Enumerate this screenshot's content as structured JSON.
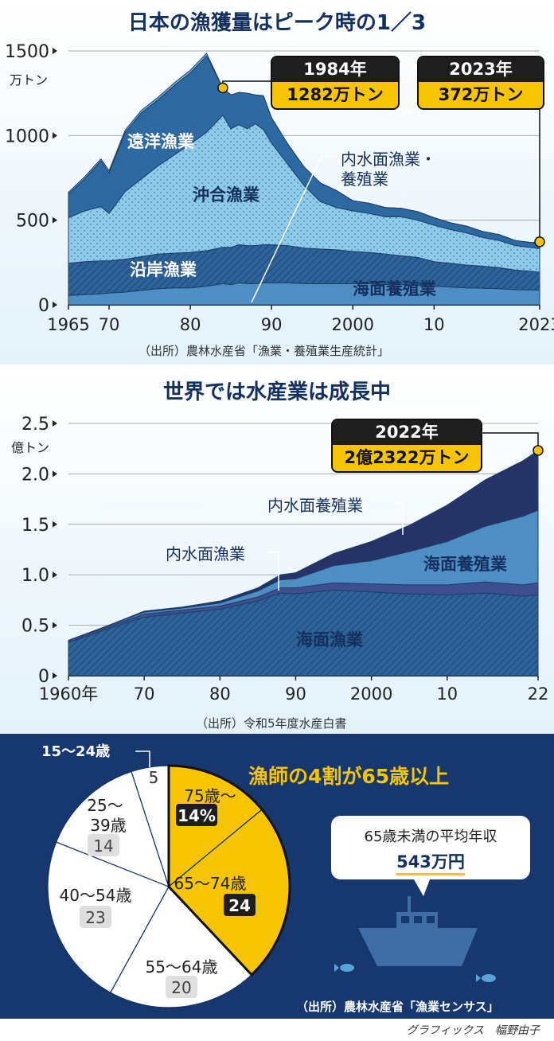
{
  "chart_data": [
    {
      "type": "area",
      "title": "日本の漁獲量はピーク時の1／3",
      "ylabel": "万トン",
      "ylim": [
        0,
        1500
      ],
      "yticks": [
        "0",
        "500",
        "1000",
        "1500"
      ],
      "xticks": [
        "1965",
        "70",
        "80",
        "90",
        "2000",
        "10",
        "2023"
      ],
      "x": [
        1965,
        1967,
        1969,
        1970,
        1972,
        1974,
        1976,
        1978,
        1980,
        1982,
        1984,
        1985,
        1986,
        1987,
        1988,
        1989,
        1990,
        1992,
        1994,
        1996,
        1998,
        2000,
        2002,
        2004,
        2006,
        2008,
        2010,
        2012,
        2014,
        2016,
        2018,
        2020,
        2022,
        2023
      ],
      "series": [
        {
          "name": "海面養殖業",
          "values": [
            55,
            60,
            65,
            70,
            75,
            85,
            95,
            100,
            100,
            110,
            125,
            120,
            130,
            125,
            125,
            130,
            130,
            130,
            125,
            125,
            125,
            125,
            125,
            120,
            120,
            115,
            110,
            105,
            100,
            98,
            95,
            90,
            88,
            87
          ]
        },
        {
          "name": "沿岸漁業",
          "values": [
            190,
            195,
            195,
            190,
            195,
            200,
            205,
            205,
            210,
            210,
            215,
            220,
            225,
            225,
            225,
            225,
            225,
            220,
            210,
            205,
            200,
            190,
            185,
            180,
            170,
            165,
            145,
            140,
            135,
            130,
            125,
            115,
            110,
            105
          ]
        },
        {
          "name": "沖合漁業",
          "values": [
            270,
            300,
            320,
            280,
            400,
            460,
            520,
            580,
            640,
            700,
            780,
            700,
            710,
            690,
            720,
            680,
            600,
            480,
            370,
            280,
            250,
            240,
            230,
            220,
            230,
            220,
            215,
            200,
            190,
            170,
            160,
            145,
            140,
            140
          ]
        },
        {
          "name": "遠洋漁業",
          "values": [
            140,
            190,
            270,
            240,
            350,
            390,
            390,
            410,
            420,
            450,
            162,
            200,
            190,
            210,
            170,
            200,
            150,
            120,
            110,
            110,
            100,
            60,
            60,
            55,
            50,
            50,
            45,
            40,
            40,
            35,
            35,
            30,
            30,
            30
          ]
        },
        {
          "name": "内水面漁業・養殖業",
          "values": [
            10,
            12,
            12,
            13,
            14,
            15,
            15,
            15,
            16,
            16,
            0,
            0,
            0,
            0,
            0,
            0,
            0,
            0,
            0,
            0,
            0,
            0,
            0,
            0,
            0,
            0,
            0,
            0,
            0,
            0,
            0,
            0,
            0,
            10
          ]
        }
      ],
      "annotations": [
        {
          "year": "1984年",
          "value": "1282万トン"
        },
        {
          "year": "2023年",
          "value": "372万トン"
        }
      ],
      "source": "（出所）農林水産省「漁業・養殖業生産統計」"
    },
    {
      "type": "area",
      "title": "世界では水産業は成長中",
      "ylabel": "億トン",
      "ylim": [
        0,
        2.5
      ],
      "yticks": [
        "0",
        "0.5",
        "1.0",
        "1.5",
        "2.0",
        "2.5"
      ],
      "xticks": [
        "1960年",
        "70",
        "80",
        "90",
        "2000",
        "10",
        "22"
      ],
      "x": [
        1960,
        1965,
        1970,
        1975,
        1980,
        1985,
        1988,
        1990,
        1995,
        2000,
        2005,
        2010,
        2015,
        2020,
        2022
      ],
      "series": [
        {
          "name": "海面漁業",
          "values": [
            0.33,
            0.46,
            0.58,
            0.62,
            0.66,
            0.74,
            0.82,
            0.81,
            0.85,
            0.83,
            0.81,
            0.8,
            0.82,
            0.79,
            0.8
          ]
        },
        {
          "name": "内水面漁業",
          "values": [
            0.02,
            0.02,
            0.03,
            0.03,
            0.03,
            0.04,
            0.05,
            0.06,
            0.07,
            0.08,
            0.09,
            0.1,
            0.11,
            0.11,
            0.12
          ]
        },
        {
          "name": "海面養殖業",
          "values": [
            0.0,
            0.01,
            0.02,
            0.02,
            0.03,
            0.06,
            0.08,
            0.09,
            0.17,
            0.23,
            0.33,
            0.43,
            0.55,
            0.68,
            0.72
          ]
        },
        {
          "name": "内水面養殖業",
          "values": [
            0.0,
            0.0,
            0.01,
            0.01,
            0.02,
            0.03,
            0.05,
            0.06,
            0.12,
            0.19,
            0.26,
            0.36,
            0.46,
            0.55,
            0.59
          ]
        }
      ],
      "annotations": [
        {
          "year": "2022年",
          "value": "2億2322万トン"
        }
      ],
      "source": "（出所）令和5年度水産白書"
    },
    {
      "type": "pie",
      "title": "漁師の4割が65歳以上",
      "categories": [
        "15～24歳",
        "25～39歳",
        "40～54歳",
        "55～64歳",
        "65～74歳",
        "75歳～"
      ],
      "values": [
        5,
        14,
        23,
        20,
        24,
        14
      ],
      "value_labels": [
        "5",
        "14",
        "23",
        "20",
        "24",
        "14%"
      ],
      "highlight": [
        "65～74歳",
        "75歳～"
      ],
      "highlight_color": "#f6c400",
      "source": "（出所）農林水産省「漁業センサス」"
    }
  ],
  "income_note": {
    "label": "65歳未満の平均年収",
    "value": "543万円"
  },
  "credit": "グラフィックス　幅野由子",
  "colors": {
    "navy": "#14305e",
    "light_blue": "#8fc9e8",
    "mid_blue": "#3a78ae",
    "dark_blue": "#245a8c",
    "accent": "#f6c400"
  }
}
